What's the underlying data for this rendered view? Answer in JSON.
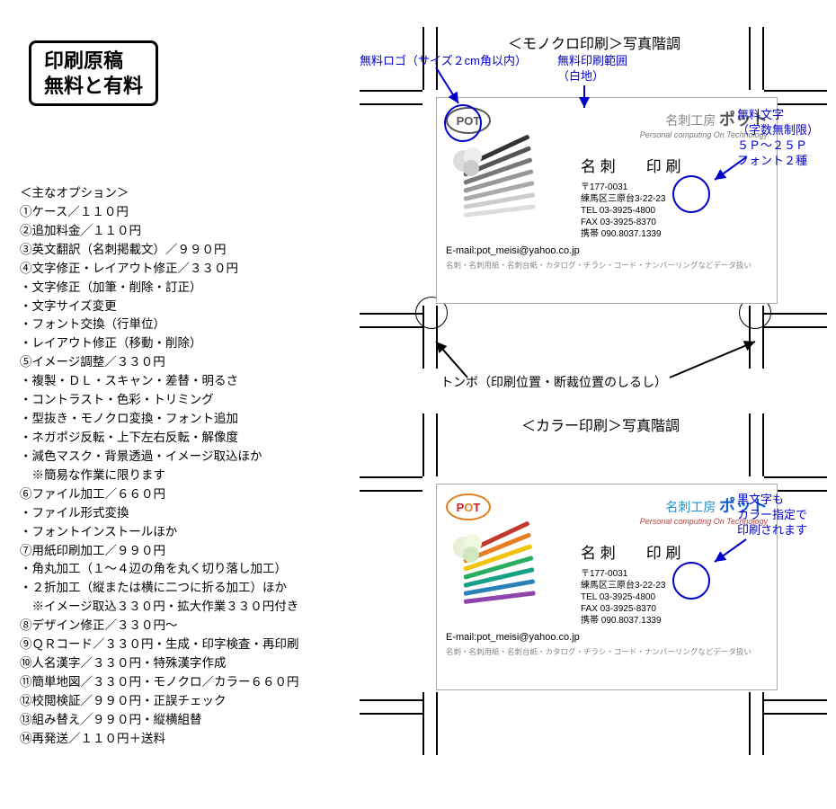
{
  "doc": {
    "title_l1": "印刷原稿",
    "title_l2": "無料と有料",
    "header_mono": "＜モノクロ印刷＞写真階調",
    "header_color": "＜カラー印刷＞写真階調",
    "options_header": "＜主なオプション＞",
    "options": [
      "①ケース／１１０円",
      "②追加料金／１１０円",
      "③英文翻訳（名刺掲載文）／９９０円",
      "④文字修正・レイアウト修正／３３０円",
      "・文字修正（加筆・削除・訂正）",
      "・文字サイズ変更",
      "・フォント交換（行単位）",
      "・レイアウト修正（移動・削除）",
      "⑤イメージ調整／３３０円",
      "・複製・ＤＬ・スキャン・差替・明るさ",
      "・コントラスト・色彩・トリミング",
      "・型抜き・モノクロ変換・フォント追加",
      "・ネガポジ反転・上下左右反転・解像度",
      "・減色マスク・背景透過・イメージ取込ほか",
      "　※簡易な作業に限ります",
      "⑥ファイル加工／６６０円",
      "・ファイル形式変換",
      "・フォントインストールほか",
      "⑦用紙印刷加工／９９０円",
      "・角丸加工（１～４辺の角を丸く切り落し加工）",
      "・２折加工（縦または横に二つに折る加工）ほか",
      "　※イメージ取込３３０円・拡大作業３３０円付き",
      "⑧デザイン修正／３３０円～",
      "⑨ＱＲコード／３３０円・生成・印字検査・再印刷",
      "⑩人名漢字／３３０円・特殊漢字作成",
      "⑪簡単地図／３３０円・モノクロ／カラー６６０円",
      "⑫校閲検証／９９０円・正誤チェック",
      "⑬組み替え／９９０円・縦横組替",
      "⑭再発送／１１０円＋送料"
    ]
  },
  "annot": {
    "logo": "無料ロゴ（サイズ２cm角以内）",
    "area_l1": "無料印刷範囲",
    "area_l2": "（白地）",
    "text_l1": "無料文字",
    "text_l2": "（字数無制限）",
    "text_l3": "５Ｐ～２５Ｐ",
    "text_l4": "フォント２種",
    "tombo": "トンボ（印刷位置・断裁位置のしるし）",
    "color_l1": "黒文字も",
    "color_l2": "カラー指定で",
    "color_l3": "印刷されます"
  },
  "card": {
    "logo_text": "POT",
    "brand_pre": "名刺工房",
    "brand": "ポット",
    "tagline": "Personal computing On Technology",
    "name1": "名 刺",
    "name2": "印 刷",
    "zip": "〒177-0031",
    "addr": "練馬区三原台3-22-23",
    "tel": "TEL 03-3925-4800",
    "fax": "FAX 03-3925-8370",
    "mobile": "携帯 090.8037.1339",
    "email": "E-mail:pot_meisi@yahoo.co.jp",
    "footer": "名刺・名刺用紙・名刺台紙・カタログ・チラシ・コード・ナンバーリングなどデータ扱い"
  },
  "colors": {
    "annot": "#0000cc",
    "mono_pencils": [
      "#333",
      "#555",
      "#777",
      "#999",
      "#aaa",
      "#ccc",
      "#ddd"
    ],
    "color_pencils": [
      "#c0392b",
      "#e67e22",
      "#f1c40f",
      "#27ae60",
      "#16a085",
      "#2980b9",
      "#8e44ad"
    ],
    "brand_mono": "#555555",
    "brand_color_pre": "#1e90c8",
    "brand_color": "#1060d0",
    "brand_tag": "#c04040",
    "logo_color1": "#d02020",
    "logo_color2": "#e08020"
  }
}
